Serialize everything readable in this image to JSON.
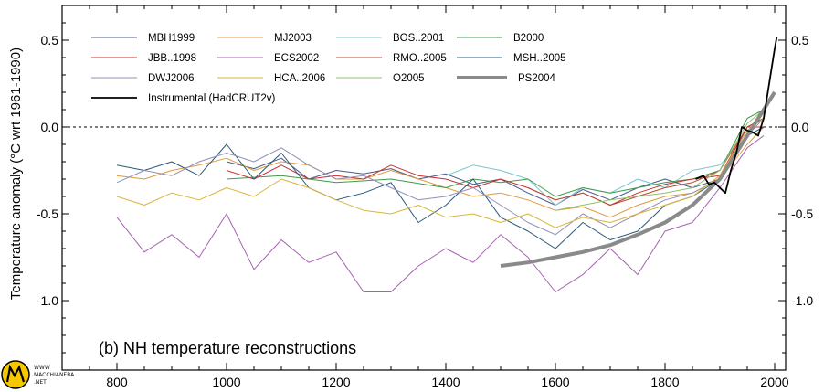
{
  "chart_data": {
    "type": "line",
    "panel_label": "(b) NH temperature reconstructions",
    "ylabel": "Temperature anomaly (°C wrt 1961-1990)",
    "xlim": [
      700,
      2020
    ],
    "ylim": [
      -1.4,
      0.7
    ],
    "x_ticks": [
      800,
      1000,
      1200,
      1400,
      1600,
      1800,
      2000
    ],
    "y_tick_values": [
      0.5,
      0.0,
      -0.5,
      -1.0
    ],
    "y_tick_labels": [
      "0.5",
      "0.0",
      "-0.5",
      "-1.0"
    ],
    "zero_line": "dashed",
    "legend_position": "top-left",
    "series": [
      {
        "name": "MBH1999",
        "color": "#4a5a8c",
        "x": [
          1000,
          1050,
          1100,
          1150,
          1200,
          1250,
          1300,
          1350,
          1400,
          1450,
          1500,
          1550,
          1600,
          1650,
          1700,
          1750,
          1800,
          1850,
          1900,
          1950,
          1980
        ],
        "values": [
          -0.2,
          -0.24,
          -0.18,
          -0.3,
          -0.25,
          -0.27,
          -0.24,
          -0.3,
          -0.27,
          -0.33,
          -0.3,
          -0.38,
          -0.45,
          -0.36,
          -0.42,
          -0.35,
          -0.3,
          -0.35,
          -0.3,
          0.0,
          0.05
        ]
      },
      {
        "name": "MJ2003",
        "color": "#e09a3a",
        "x": [
          800,
          850,
          900,
          950,
          1000,
          1050,
          1100,
          1150,
          1200,
          1250,
          1300,
          1350,
          1400,
          1450,
          1500,
          1550,
          1600,
          1650,
          1700,
          1750,
          1800,
          1850,
          1900,
          1950,
          1980
        ],
        "values": [
          -0.28,
          -0.3,
          -0.25,
          -0.22,
          -0.18,
          -0.25,
          -0.2,
          -0.22,
          -0.3,
          -0.3,
          -0.25,
          -0.3,
          -0.35,
          -0.4,
          -0.38,
          -0.42,
          -0.48,
          -0.46,
          -0.52,
          -0.45,
          -0.4,
          -0.38,
          -0.3,
          -0.1,
          0.0
        ]
      },
      {
        "name": "BOS..2001",
        "color": "#79c4d6",
        "x": [
          1400,
          1450,
          1500,
          1550,
          1600,
          1650,
          1700,
          1750,
          1800,
          1850,
          1900,
          1950,
          1980
        ],
        "values": [
          -0.28,
          -0.22,
          -0.25,
          -0.3,
          -0.45,
          -0.35,
          -0.38,
          -0.3,
          -0.35,
          -0.25,
          -0.22,
          -0.05,
          0.08
        ]
      },
      {
        "name": "B2000",
        "color": "#3f9a4a",
        "x": [
          1000,
          1100,
          1200,
          1300,
          1400,
          1450,
          1500,
          1550,
          1600,
          1650,
          1700,
          1750,
          1800,
          1850,
          1900,
          1950,
          1980
        ],
        "values": [
          -0.3,
          -0.28,
          -0.32,
          -0.3,
          -0.35,
          -0.3,
          -0.32,
          -0.3,
          -0.4,
          -0.35,
          -0.38,
          -0.35,
          -0.32,
          -0.3,
          -0.25,
          0.05,
          0.1
        ]
      },
      {
        "name": "JBB..1998",
        "color": "#cc3030",
        "x": [
          1000,
          1050,
          1100,
          1150,
          1200,
          1250,
          1300,
          1350,
          1400,
          1450,
          1500,
          1550,
          1600,
          1650,
          1700,
          1750,
          1800,
          1850,
          1900,
          1950,
          1980
        ],
        "values": [
          -0.25,
          -0.3,
          -0.22,
          -0.3,
          -0.28,
          -0.3,
          -0.22,
          -0.28,
          -0.3,
          -0.35,
          -0.3,
          -0.35,
          -0.42,
          -0.38,
          -0.45,
          -0.38,
          -0.33,
          -0.3,
          -0.28,
          0.0,
          0.0
        ]
      },
      {
        "name": "ECS2002",
        "color": "#a660b0",
        "x": [
          800,
          850,
          900,
          950,
          1000,
          1050,
          1100,
          1150,
          1200,
          1250,
          1300,
          1350,
          1400,
          1450,
          1500,
          1550,
          1600,
          1650,
          1700,
          1750,
          1800,
          1850,
          1900,
          1950,
          1980
        ],
        "values": [
          -0.52,
          -0.72,
          -0.62,
          -0.75,
          -0.5,
          -0.82,
          -0.65,
          -0.78,
          -0.72,
          -0.95,
          -0.95,
          -0.8,
          -0.7,
          -0.78,
          -0.62,
          -0.75,
          -0.95,
          -0.85,
          -0.7,
          -0.85,
          -0.6,
          -0.55,
          -0.35,
          -0.12,
          -0.05
        ]
      },
      {
        "name": "RMO..2005",
        "color": "#b84a30",
        "x": [
          1550,
          1600,
          1650,
          1700,
          1750,
          1800,
          1850,
          1900,
          1950,
          1980
        ],
        "values": [
          -0.35,
          -0.42,
          -0.38,
          -0.45,
          -0.4,
          -0.35,
          -0.32,
          -0.25,
          0.0,
          0.05
        ]
      },
      {
        "name": "MSH..2005",
        "color": "#2a5a7a",
        "x": [
          800,
          850,
          900,
          950,
          1000,
          1050,
          1100,
          1150,
          1200,
          1250,
          1300,
          1350,
          1400,
          1450,
          1500,
          1550,
          1600,
          1650,
          1700,
          1750,
          1800,
          1850,
          1900,
          1950,
          1980
        ],
        "values": [
          -0.22,
          -0.25,
          -0.2,
          -0.28,
          -0.1,
          -0.3,
          -0.15,
          -0.35,
          -0.42,
          -0.38,
          -0.32,
          -0.55,
          -0.45,
          -0.3,
          -0.52,
          -0.6,
          -0.7,
          -0.55,
          -0.65,
          -0.6,
          -0.45,
          -0.4,
          -0.3,
          -0.05,
          0.0
        ]
      },
      {
        "name": "DWJ2006",
        "color": "#9090b8",
        "x": [
          800,
          850,
          900,
          950,
          1000,
          1050,
          1100,
          1150,
          1200,
          1250,
          1300,
          1350,
          1400,
          1450,
          1500,
          1550,
          1600,
          1650,
          1700,
          1750,
          1800,
          1850,
          1900,
          1950,
          1980
        ],
        "values": [
          -0.32,
          -0.25,
          -0.28,
          -0.2,
          -0.15,
          -0.2,
          -0.12,
          -0.22,
          -0.3,
          -0.28,
          -0.35,
          -0.42,
          -0.4,
          -0.35,
          -0.45,
          -0.55,
          -0.62,
          -0.5,
          -0.58,
          -0.5,
          -0.42,
          -0.38,
          -0.3,
          -0.05,
          0.05
        ]
      },
      {
        "name": "HCA..2006",
        "color": "#d8b63a",
        "x": [
          800,
          850,
          900,
          950,
          1000,
          1050,
          1100,
          1150,
          1200,
          1250,
          1300,
          1350,
          1400,
          1450,
          1500,
          1550,
          1600,
          1650,
          1700,
          1750,
          1800,
          1850,
          1900,
          1950,
          1980
        ],
        "values": [
          -0.4,
          -0.45,
          -0.38,
          -0.42,
          -0.35,
          -0.4,
          -0.3,
          -0.35,
          -0.42,
          -0.48,
          -0.5,
          -0.45,
          -0.52,
          -0.5,
          -0.55,
          -0.5,
          -0.58,
          -0.52,
          -0.55,
          -0.5,
          -0.45,
          -0.4,
          -0.28,
          -0.02,
          0.05
        ]
      },
      {
        "name": "O2005",
        "color": "#8cc46a",
        "x": [
          1600,
          1650,
          1700,
          1750,
          1800,
          1850,
          1900,
          1950,
          1980
        ],
        "values": [
          -0.48,
          -0.45,
          -0.42,
          -0.4,
          -0.38,
          -0.35,
          -0.25,
          0.02,
          0.1
        ]
      },
      {
        "name": "PS2004",
        "color": "#8a8a8a",
        "x": [
          1500,
          1550,
          1600,
          1650,
          1700,
          1750,
          1800,
          1850,
          1900,
          1950,
          2000
        ],
        "values": [
          -0.8,
          -0.78,
          -0.75,
          -0.72,
          -0.68,
          -0.62,
          -0.55,
          -0.45,
          -0.3,
          -0.05,
          0.2
        ]
      },
      {
        "name": "Instrumental (HadCRUT2v)",
        "color": "#000000",
        "x": [
          1856,
          1870,
          1880,
          1890,
          1900,
          1910,
          1920,
          1930,
          1940,
          1950,
          1960,
          1970,
          1980,
          1990,
          2000,
          2004
        ],
        "values": [
          -0.3,
          -0.28,
          -0.33,
          -0.32,
          -0.35,
          -0.38,
          -0.25,
          -0.15,
          0.0,
          -0.02,
          -0.03,
          -0.05,
          0.05,
          0.25,
          0.45,
          0.52
        ]
      }
    ],
    "legend_rows": [
      [
        "MBH1999",
        "MJ2003",
        "BOS..2001",
        "B2000"
      ],
      [
        "JBB..1998",
        "ECS2002",
        "RMO..2005",
        "MSH..2005"
      ],
      [
        "DWJ2006",
        "HCA..2006",
        "O2005",
        "PS2004"
      ],
      [
        "Instrumental (HadCRUT2v)"
      ]
    ]
  },
  "watermark": {
    "line1": "WWW",
    "line2": "MACCHIANERA",
    "line3": ".NET"
  }
}
